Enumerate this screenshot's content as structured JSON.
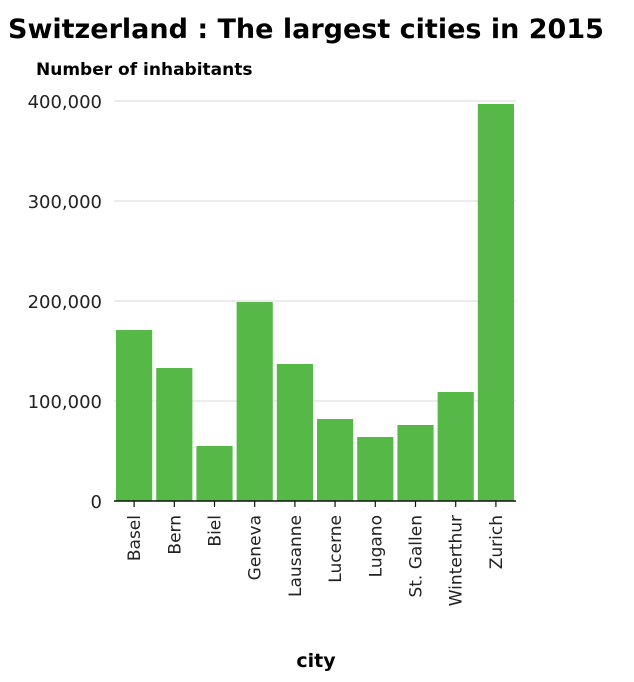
{
  "chart_data": {
    "type": "bar",
    "title": "Switzerland : The largest cities in 2015",
    "ylabel": "Number of inhabitants",
    "xlabel": "city",
    "categories": [
      "Basel",
      "Bern",
      "Biel",
      "Geneva",
      "Lausanne",
      "Lucerne",
      "Lugano",
      "St. Gallen",
      "Winterthur",
      "Zurich"
    ],
    "values": [
      171000,
      133000,
      55000,
      199000,
      137000,
      82000,
      64000,
      76000,
      109000,
      397000
    ],
    "ylim": [
      0,
      400000
    ],
    "yticks": [
      0,
      100000,
      200000,
      300000,
      400000
    ],
    "ytick_labels": [
      "0",
      "100,000",
      "200,000",
      "300,000",
      "400,000"
    ],
    "grid": true,
    "bar_color": "#56b947"
  }
}
